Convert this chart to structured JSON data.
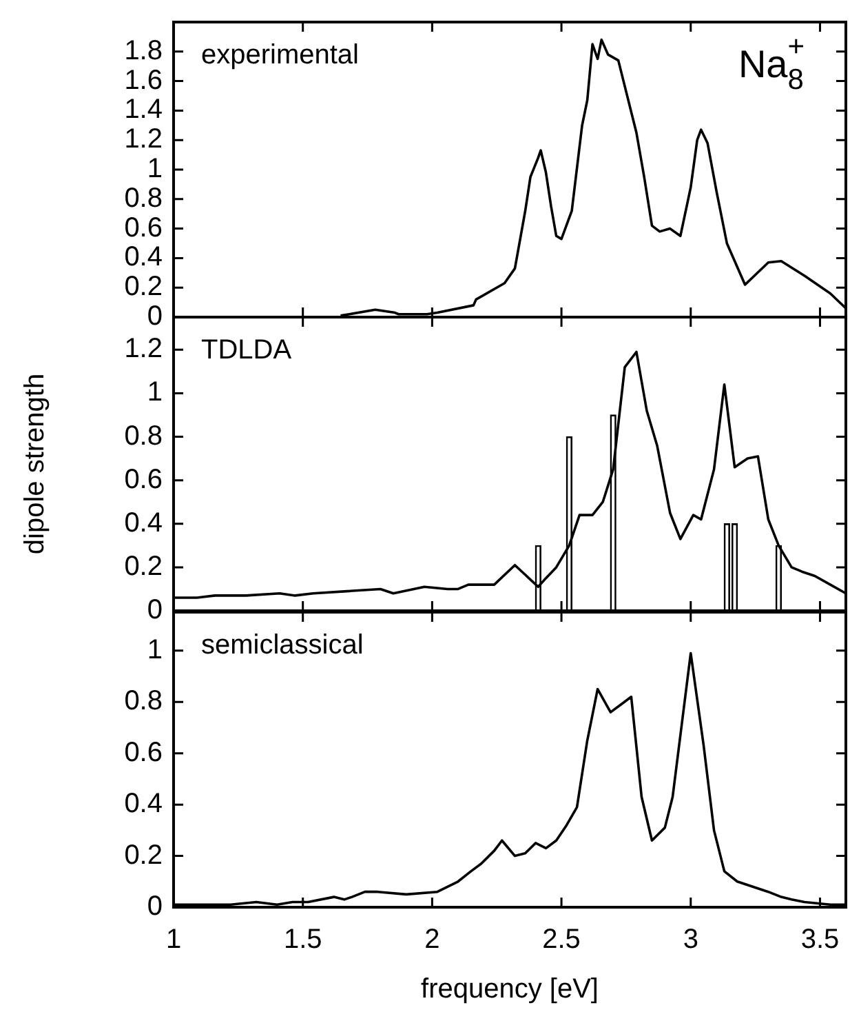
{
  "chart_data": [
    {
      "type": "line",
      "annotations": [
        "experimental",
        "Na$_{8}$$^{+}$"
      ],
      "color": "#000000",
      "xlim": [
        1,
        3.6
      ],
      "xticks": [
        1,
        1.5,
        2,
        2.5,
        3,
        3.5
      ],
      "ylim": [
        0,
        2
      ],
      "yticks": [
        0,
        0.2,
        0.4,
        0.6,
        0.8,
        1,
        1.2,
        1.4,
        1.6,
        1.8
      ],
      "tick_labels": "y",
      "x": [
        1.646,
        1.78,
        1.856,
        1.87,
        1.98,
        2.02,
        2.16,
        2.17,
        2.28,
        2.32,
        2.36,
        2.38,
        2.41,
        2.42,
        2.44,
        2.46,
        2.48,
        2.5,
        2.54,
        2.58,
        2.6,
        2.62,
        2.64,
        2.655,
        2.68,
        2.72,
        2.74,
        2.79,
        2.82,
        2.85,
        2.88,
        2.92,
        2.96,
        3.0,
        3.025,
        3.04,
        3.065,
        3.1,
        3.14,
        3.21,
        3.24,
        3.3,
        3.35,
        3.44,
        3.54,
        3.6
      ],
      "values": [
        0.01,
        0.05,
        0.03,
        0.02,
        0.02,
        0.03,
        0.08,
        0.12,
        0.23,
        0.33,
        0.72,
        0.95,
        1.08,
        1.13,
        0.98,
        0.75,
        0.55,
        0.53,
        0.72,
        1.3,
        1.47,
        1.85,
        1.75,
        1.88,
        1.78,
        1.74,
        1.6,
        1.25,
        0.95,
        0.62,
        0.58,
        0.6,
        0.55,
        0.88,
        1.2,
        1.27,
        1.18,
        0.85,
        0.5,
        0.22,
        0.27,
        0.37,
        0.38,
        0.28,
        0.16,
        0.06
      ]
    },
    {
      "type": "line",
      "ylabel": "dipole strength",
      "annotations": [
        "TDLDA"
      ],
      "xlim": [
        1,
        3.6
      ],
      "xticks": [
        1,
        1.5,
        2,
        2.5,
        3,
        3.5
      ],
      "ylim": [
        0,
        1.35
      ],
      "yticks": [
        0,
        0.2,
        0.4,
        0.6,
        0.8,
        1,
        1.2
      ],
      "tick_labels": "y",
      "series": [
        {
          "type": "bar",
          "color": "#000000",
          "x": [
            2.41,
            2.53,
            2.7,
            3.14,
            3.17,
            3.34
          ],
          "values": [
            0.3,
            0.8,
            0.9,
            0.4,
            0.4,
            0.3
          ]
        },
        {
          "type": "line",
          "color": "#000000",
          "x": [
            1.0,
            1.09,
            1.16,
            1.28,
            1.41,
            1.47,
            1.54,
            1.67,
            1.8,
            1.85,
            1.97,
            2.06,
            2.1,
            2.14,
            2.24,
            2.32,
            2.41,
            2.44,
            2.48,
            2.53,
            2.57,
            2.62,
            2.66,
            2.7,
            2.745,
            2.79,
            2.83,
            2.87,
            2.92,
            2.96,
            3.01,
            3.04,
            3.09,
            3.13,
            3.17,
            3.22,
            3.26,
            3.3,
            3.34,
            3.39,
            3.43,
            3.48,
            3.54,
            3.6
          ],
          "values": [
            0.06,
            0.06,
            0.07,
            0.07,
            0.08,
            0.07,
            0.08,
            0.09,
            0.1,
            0.08,
            0.11,
            0.1,
            0.1,
            0.12,
            0.12,
            0.21,
            0.11,
            0.15,
            0.2,
            0.3,
            0.44,
            0.44,
            0.5,
            0.65,
            1.12,
            1.19,
            0.92,
            0.76,
            0.45,
            0.33,
            0.44,
            0.42,
            0.65,
            1.04,
            0.66,
            0.7,
            0.71,
            0.42,
            0.3,
            0.2,
            0.18,
            0.16,
            0.12,
            0.08
          ]
        }
      ]
    },
    {
      "type": "line",
      "xlabel": "frequency [eV]",
      "annotations": [
        "semiclassical"
      ],
      "color": "#000000",
      "xlim": [
        1,
        3.6
      ],
      "xticks": [
        1,
        1.5,
        2,
        2.5,
        3,
        3.5
      ],
      "ylim": [
        0,
        1.15
      ],
      "yticks": [
        0,
        0.2,
        0.4,
        0.6,
        0.8,
        1
      ],
      "x": [
        1.0,
        1.1,
        1.22,
        1.32,
        1.4,
        1.46,
        1.52,
        1.62,
        1.66,
        1.69,
        1.74,
        1.79,
        1.9,
        2.02,
        2.1,
        2.15,
        2.19,
        2.24,
        2.27,
        2.32,
        2.36,
        2.4,
        2.44,
        2.48,
        2.52,
        2.56,
        2.6,
        2.64,
        2.69,
        2.73,
        2.77,
        2.81,
        2.85,
        2.9,
        2.93,
        2.97,
        3.0,
        3.05,
        3.09,
        3.13,
        3.18,
        3.24,
        3.3,
        3.35,
        3.39,
        3.44,
        3.54,
        3.6
      ],
      "values": [
        0.01,
        0.01,
        0.01,
        0.02,
        0.01,
        0.02,
        0.02,
        0.04,
        0.03,
        0.04,
        0.06,
        0.06,
        0.05,
        0.06,
        0.1,
        0.14,
        0.17,
        0.22,
        0.26,
        0.2,
        0.21,
        0.25,
        0.23,
        0.26,
        0.32,
        0.39,
        0.65,
        0.85,
        0.76,
        0.79,
        0.82,
        0.43,
        0.26,
        0.31,
        0.43,
        0.75,
        0.99,
        0.63,
        0.3,
        0.14,
        0.1,
        0.08,
        0.06,
        0.04,
        0.03,
        0.02,
        0.01,
        0.01
      ]
    }
  ]
}
